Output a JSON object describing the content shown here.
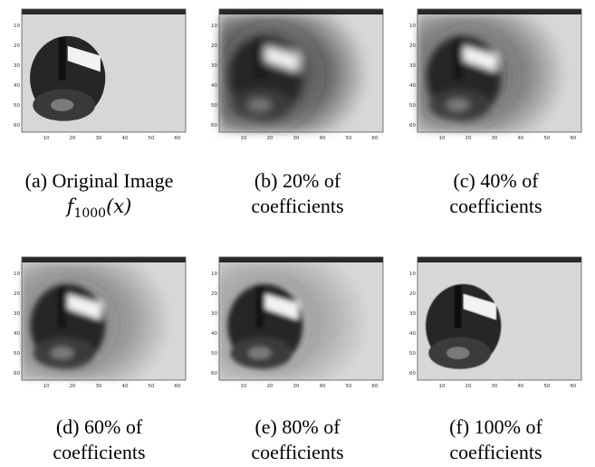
{
  "figure": {
    "panels": [
      {
        "id": "a",
        "caption_line1": "(a) Original Image",
        "caption_line2": "",
        "math": {
          "f": "f",
          "sub": "1000",
          "arg": "(x)"
        },
        "blur": 0.0,
        "ring": 0.0,
        "bg_dark": 0.1
      },
      {
        "id": "b",
        "caption_line1": "(b) 20% of",
        "caption_line2": "coefficients",
        "blur": 2.2,
        "ring": 0.85,
        "bg_dark": 0.75
      },
      {
        "id": "c",
        "caption_line1": "(c) 40% of",
        "caption_line2": "coefficients",
        "blur": 1.8,
        "ring": 0.65,
        "bg_dark": 0.55
      },
      {
        "id": "d",
        "caption_line1": "(d) 60% of",
        "caption_line2": "coefficients",
        "blur": 1.5,
        "ring": 0.45,
        "bg_dark": 0.4
      },
      {
        "id": "e",
        "caption_line1": "(e) 80% of",
        "caption_line2": "coefficients",
        "blur": 1.2,
        "ring": 0.3,
        "bg_dark": 0.28
      },
      {
        "id": "f",
        "caption_line1": "(f) 100% of",
        "caption_line2": "coefficients",
        "blur": 0.3,
        "ring": 0.05,
        "bg_dark": 0.1
      }
    ],
    "axis": {
      "y_ticks": [
        "10",
        "20",
        "30",
        "40",
        "50",
        "60"
      ],
      "x_ticks": [
        "10",
        "20",
        "30",
        "40",
        "50",
        "60"
      ]
    }
  }
}
